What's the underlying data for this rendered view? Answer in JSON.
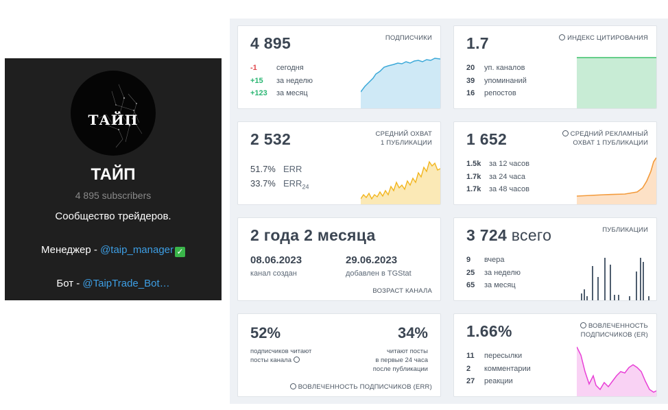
{
  "channel": {
    "logo_text": "ТАЙП",
    "title": "ТАЙП",
    "subscribers": "4 895 subscribers",
    "description": "Сообщество трейдеров.",
    "manager_label": "Менеджер - ",
    "manager_link": "@taip_manager",
    "manager_badge": "✓",
    "bot_label": "Бот - ",
    "bot_link": "@TaipTrade_Bot…"
  },
  "cards": {
    "subscribers": {
      "value": "4 895",
      "label": "ПОДПИСЧИКИ",
      "rows": [
        {
          "num": "-1",
          "text": "сегодня"
        },
        {
          "num": "+15",
          "text": "за неделю"
        },
        {
          "num": "+123",
          "text": "за месяц"
        }
      ]
    },
    "citation": {
      "value": "1.7",
      "label": "ИНДЕКС ЦИТИРОВАНИЯ",
      "rows": [
        {
          "num": "20",
          "text": "уп. каналов"
        },
        {
          "num": "39",
          "text": "упоминаний"
        },
        {
          "num": "16",
          "text": "репостов"
        }
      ]
    },
    "reach": {
      "value": "2 532",
      "label_line1": "СРЕДНИЙ ОХВАТ",
      "label_line2": "1 ПУБЛИКАЦИИ",
      "rows": [
        {
          "num": "51.7%",
          "text": "ERR"
        },
        {
          "num": "33.7%",
          "text": "ERR",
          "sub": "24"
        }
      ]
    },
    "ad_reach": {
      "value": "1 652",
      "label_line1": "СРЕДНИЙ РЕКЛАМНЫЙ",
      "label_line2": "ОХВАТ 1 ПУБЛИКАЦИИ",
      "rows": [
        {
          "num": "1.5k",
          "text": "за 12 часов"
        },
        {
          "num": "1.7k",
          "text": "за 24 часа"
        },
        {
          "num": "1.7k",
          "text": "за 48 часов"
        }
      ]
    },
    "age": {
      "value": "2 года 2 месяца",
      "created_date": "08.06.2023",
      "created_label": "канал создан",
      "added_date": "29.06.2023",
      "added_label": "добавлен в TGStat",
      "label": "ВОЗРАСТ КАНАЛА"
    },
    "posts": {
      "value": "3 724",
      "value_suffix": "всего",
      "label": "ПУБЛИКАЦИИ",
      "rows": [
        {
          "num": "9",
          "text": "вчера"
        },
        {
          "num": "25",
          "text": "за неделю"
        },
        {
          "num": "65",
          "text": "за месяц"
        }
      ]
    },
    "engagement": {
      "left_pct": "52%",
      "left_note_line1": "подписчиков читают",
      "left_note_line2": "посты канала",
      "right_pct": "34%",
      "right_note_line1": "читают посты",
      "right_note_line2": "в первые 24 часа",
      "right_note_line3": "после публикации",
      "label": "ВОВЛЕЧЕННОСТЬ ПОДПИСЧИКОВ (ERR)"
    },
    "er": {
      "value": "1.66%",
      "label_line1": "ВОВЛЕЧЕННОСТЬ",
      "label_line2": "ПОДПИСЧИКОВ (ER)",
      "rows": [
        {
          "num": "11",
          "text": "пересылки"
        },
        {
          "num": "2",
          "text": "комментарии"
        },
        {
          "num": "27",
          "text": "реакции"
        }
      ]
    }
  },
  "colors": {
    "subscribers_chart": "#3aa8d8",
    "citation_chart": "#3cc26a",
    "reach_chart": "#f2b51d",
    "ad_reach_chart": "#f39a3a",
    "posts_chart": "#4e5d6e",
    "er_chart": "#e83fd6",
    "negative": "#e0474c",
    "positive": "#2bb673"
  }
}
